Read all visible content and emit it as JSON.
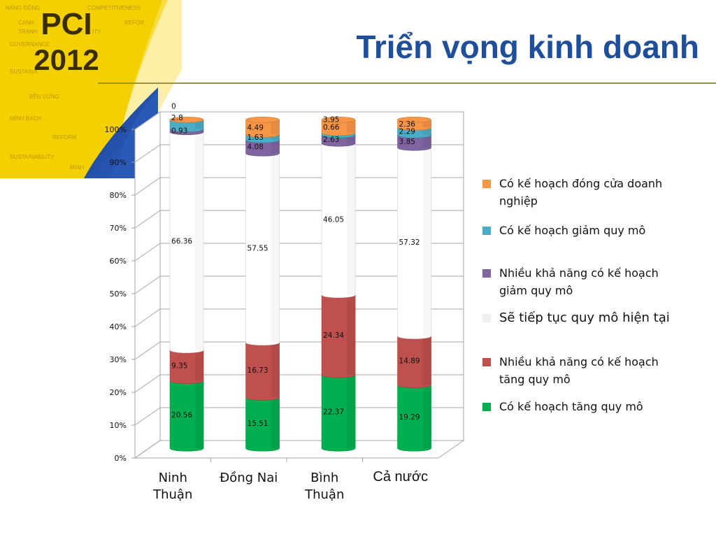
{
  "slide": {
    "title": "Triển vọng kinh doanh",
    "brand_line1": "PCI",
    "brand_line2": "2012",
    "watermark_words": [
      "NĂNG ĐỘNG",
      "COMPETITIVENESS",
      "CẠNH",
      "REFOR",
      "TRANH",
      "ITY",
      "GOVERNANCE",
      "SUSTAINA",
      "BỀN VỮNG",
      "MINH BẠCH",
      "REFORM",
      "SUSTAINABILITY",
      "MINH"
    ],
    "accent_color": "#f5d000",
    "title_color": "#1f4e9a"
  },
  "chart_data": {
    "type": "bar",
    "stacked": true,
    "percent": true,
    "categories": [
      "Ninh Thuận",
      "Đồng Nai",
      "Bình Thuận",
      "Cả nước"
    ],
    "y_ticks": [
      "0%",
      "10%",
      "20%",
      "30%",
      "40%",
      "50%",
      "60%",
      "70%",
      "80%",
      "90%",
      "100%"
    ],
    "ylim": [
      0,
      100
    ],
    "series": [
      {
        "name": "Có kế hoạch tăng quy mô",
        "color": "#00b050",
        "values": [
          20.56,
          15.51,
          22.37,
          19.29
        ]
      },
      {
        "name": "Nhiều khả năng có kế hoạch tăng quy mô",
        "color": "#c0504d",
        "values": [
          9.35,
          16.73,
          24.34,
          14.89
        ]
      },
      {
        "name": "Sẽ tiếp tục quy mô hiện tại",
        "color": "#ffffff",
        "values": [
          66.36,
          57.55,
          46.05,
          57.32
        ]
      },
      {
        "name": "Nhiều khả năng có kế hoạch giảm quy mô",
        "color": "#8064a2",
        "values": [
          0.93,
          4.08,
          2.63,
          3.85
        ]
      },
      {
        "name": "Có kế hoạch giảm quy mô",
        "color": "#4bacc6",
        "values": [
          2.8,
          1.63,
          0.66,
          2.29
        ]
      },
      {
        "name": "Có kế hoạch đóng cửa doanh nghiệp",
        "color": "#f79646",
        "values": [
          0,
          4.49,
          3.95,
          2.36
        ]
      }
    ],
    "data_labels": [
      [
        "20.56",
        "15.51",
        "22.37",
        "19.29"
      ],
      [
        "9.35",
        "16.73",
        "24.34",
        "14.89"
      ],
      [
        "66.36",
        "57.55",
        "46.05",
        "57.32"
      ],
      [
        "0.93",
        "4.08",
        "2.63",
        "3.85"
      ],
      [
        "2.8",
        "1.63",
        "0.66",
        "2.29"
      ],
      [
        "0",
        "4.49",
        "3.95",
        "2.36"
      ]
    ],
    "legend_order": [
      5,
      4,
      3,
      2,
      1,
      0
    ],
    "legend_position": "right",
    "grid": true
  }
}
